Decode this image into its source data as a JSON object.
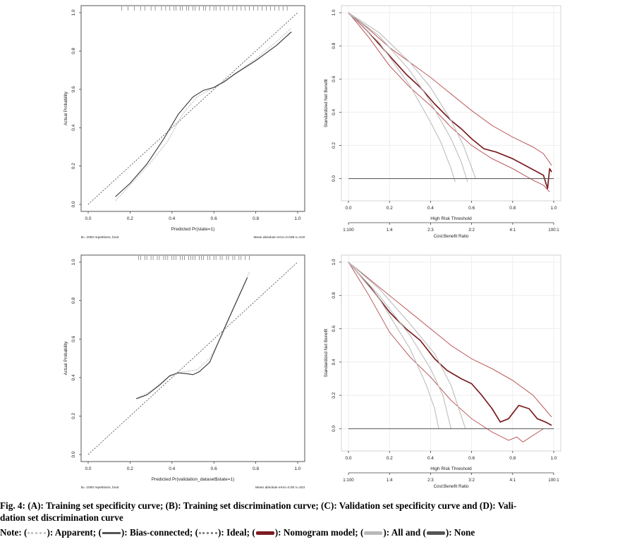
{
  "caption": {
    "line1": "Fig. 4: (A): Training set specificity curve; (B): Training set discrimination curve; (C): Validation set specificity curve and (D): Vali-",
    "line2": "dation set discrimination curve",
    "note": {
      "prefix": "Note: (",
      "apparent": "): Apparent; (",
      "bias": "): Bias-connected; (",
      "ideal": "): Ideal; (",
      "nomogram": "): Nomogram model; (",
      "all": "): All and (",
      "none": "): None"
    }
  },
  "colors": {
    "nomogram": "#7a1c20",
    "nomogram_ci": "#b5474a",
    "all": "#bdbdbd",
    "none": "#555555",
    "apparent": "#c8c8c8",
    "bias": "#333333",
    "ideal": "#555555",
    "grid": "#eeeeee",
    "axis": "#444444"
  },
  "chart_data": [
    {
      "id": "A",
      "type": "line",
      "title": "",
      "xlabel": "Predicted Pr(state=1)",
      "ylabel": "Actual Probability",
      "xlim": [
        0,
        1
      ],
      "ylim": [
        0,
        1
      ],
      "xticks": [
        "0.0",
        "0.2",
        "0.4",
        "0.6",
        "0.8",
        "1.0"
      ],
      "yticks": [
        "0.0",
        "0.2",
        "0.4",
        "0.6",
        "0.8",
        "1.0"
      ],
      "footnote_left": "B= 1000 repetitions, boot",
      "footnote_right": "Mean absolute error=0.038 n=419",
      "rug": [
        0.16,
        0.19,
        0.22,
        0.25,
        0.27,
        0.3,
        0.32,
        0.35,
        0.37,
        0.39,
        0.41,
        0.42,
        0.44,
        0.45,
        0.47,
        0.48,
        0.5,
        0.51,
        0.53,
        0.55,
        0.56,
        0.58,
        0.6,
        0.61,
        0.63,
        0.65,
        0.67,
        0.69,
        0.71,
        0.73,
        0.75,
        0.77,
        0.79,
        0.81,
        0.83,
        0.85,
        0.87,
        0.89,
        0.91,
        0.93,
        0.95
      ],
      "series": [
        {
          "name": "Ideal",
          "style": "ideal",
          "x": [
            0,
            1
          ],
          "y": [
            0,
            1
          ]
        },
        {
          "name": "Apparent",
          "style": "apparent",
          "x": [
            0.13,
            0.2,
            0.3,
            0.38,
            0.45,
            0.52,
            0.6,
            0.7,
            0.8,
            0.9,
            0.97
          ],
          "y": [
            0.02,
            0.1,
            0.22,
            0.33,
            0.47,
            0.56,
            0.61,
            0.68,
            0.76,
            0.85,
            0.92
          ]
        },
        {
          "name": "Bias-connected",
          "style": "bias",
          "x": [
            0.13,
            0.2,
            0.28,
            0.36,
            0.43,
            0.5,
            0.55,
            0.6,
            0.65,
            0.7,
            0.8,
            0.9,
            0.97
          ],
          "y": [
            0.04,
            0.11,
            0.21,
            0.34,
            0.47,
            0.56,
            0.595,
            0.61,
            0.64,
            0.68,
            0.75,
            0.83,
            0.9
          ]
        }
      ]
    },
    {
      "id": "B",
      "type": "line",
      "title": "",
      "xlabel": "High Risk Threshold",
      "ylabel": "Standardized Net Benefit",
      "xlim": [
        0,
        1
      ],
      "ylim": [
        -0.1,
        1
      ],
      "xticks": [
        "0.0",
        "0.2",
        "0.4",
        "0.6",
        "0.8",
        "1.0"
      ],
      "yticks": [
        "0.0",
        "0.2",
        "0.4",
        "0.6",
        "0.8",
        "1.0"
      ],
      "cost_benefit_label": "Cost:Benefit Ratio",
      "cost_benefit_ticks": [
        "1:100",
        "1:4",
        "2:3",
        "3:2",
        "4:1",
        "100:1"
      ],
      "series": [
        {
          "name": "Nomogram model",
          "style": "nomogram",
          "x": [
            0.0,
            0.1,
            0.2,
            0.28,
            0.35,
            0.42,
            0.5,
            0.55,
            0.6,
            0.66,
            0.72,
            0.8,
            0.86,
            0.92,
            0.95,
            0.97,
            0.98,
            0.99
          ],
          "y": [
            1.0,
            0.88,
            0.74,
            0.63,
            0.55,
            0.45,
            0.35,
            0.3,
            0.24,
            0.18,
            0.16,
            0.12,
            0.08,
            0.04,
            0.02,
            -0.06,
            0.06,
            0.04
          ]
        },
        {
          "name": "Nomogram upper CI",
          "style": "ci",
          "x": [
            0.0,
            0.1,
            0.2,
            0.3,
            0.4,
            0.5,
            0.6,
            0.7,
            0.8,
            0.9,
            0.95,
            0.99
          ],
          "y": [
            1.0,
            0.9,
            0.79,
            0.7,
            0.61,
            0.51,
            0.41,
            0.32,
            0.25,
            0.19,
            0.15,
            0.08
          ]
        },
        {
          "name": "Nomogram lower CI",
          "style": "ci",
          "x": [
            0.0,
            0.1,
            0.2,
            0.3,
            0.4,
            0.5,
            0.6,
            0.7,
            0.8,
            0.9,
            0.95,
            0.98
          ],
          "y": [
            1.0,
            0.85,
            0.68,
            0.55,
            0.44,
            0.31,
            0.2,
            0.12,
            0.06,
            -0.01,
            -0.04,
            -0.08
          ]
        },
        {
          "name": "All",
          "style": "all",
          "x": [
            0.0,
            0.15,
            0.3,
            0.4,
            0.45,
            0.5,
            0.52
          ],
          "y": [
            1.0,
            0.82,
            0.56,
            0.34,
            0.22,
            0.06,
            -0.02
          ]
        },
        {
          "name": "All CI 1",
          "style": "all",
          "x": [
            0.0,
            0.15,
            0.3,
            0.4,
            0.5,
            0.55,
            0.58
          ],
          "y": [
            1.0,
            0.86,
            0.65,
            0.46,
            0.24,
            0.1,
            -0.02
          ]
        },
        {
          "name": "All CI 2",
          "style": "all",
          "x": [
            0.0,
            0.15,
            0.3,
            0.4,
            0.5,
            0.56,
            0.62
          ],
          "y": [
            1.0,
            0.88,
            0.7,
            0.55,
            0.35,
            0.2,
            0.0
          ]
        },
        {
          "name": "None",
          "style": "none",
          "x": [
            0.0,
            1.0
          ],
          "y": [
            0.0,
            0.0
          ]
        }
      ]
    },
    {
      "id": "C",
      "type": "line",
      "title": "",
      "xlabel": "Predicted Pr(validation_dataset$state=1)",
      "ylabel": "Actual Probability",
      "xlim": [
        0,
        1
      ],
      "ylim": [
        0,
        1
      ],
      "xticks": [
        "0.0",
        "0.2",
        "0.4",
        "0.6",
        "0.8",
        "1.0"
      ],
      "yticks": [
        "0.0",
        "0.2",
        "0.4",
        "0.6",
        "0.8",
        "1.0"
      ],
      "footnote_left": "B= 1000 repetitions, boot",
      "footnote_right": "Mean absolute error=0.00 n=103",
      "rug": [
        0.24,
        0.25,
        0.27,
        0.28,
        0.3,
        0.31,
        0.33,
        0.34,
        0.36,
        0.37,
        0.38,
        0.4,
        0.41,
        0.42,
        0.44,
        0.45,
        0.46,
        0.48,
        0.49,
        0.5,
        0.51,
        0.53,
        0.54,
        0.55,
        0.57,
        0.58,
        0.6,
        0.61,
        0.63,
        0.64,
        0.66,
        0.67,
        0.69,
        0.7,
        0.72,
        0.73,
        0.75,
        0.77
      ],
      "series": [
        {
          "name": "Ideal",
          "style": "ideal",
          "x": [
            0,
            1
          ],
          "y": [
            0,
            1
          ]
        },
        {
          "name": "Apparent",
          "style": "apparent",
          "x": [
            0.23,
            0.3,
            0.38,
            0.45,
            0.52,
            0.58,
            0.64,
            0.7,
            0.77
          ],
          "y": [
            0.29,
            0.33,
            0.4,
            0.43,
            0.44,
            0.5,
            0.62,
            0.78,
            0.95
          ]
        },
        {
          "name": "Bias-connected",
          "style": "bias",
          "x": [
            0.23,
            0.28,
            0.34,
            0.39,
            0.43,
            0.47,
            0.5,
            0.53,
            0.58,
            0.62,
            0.66,
            0.71,
            0.76
          ],
          "y": [
            0.29,
            0.31,
            0.36,
            0.41,
            0.425,
            0.42,
            0.415,
            0.43,
            0.48,
            0.58,
            0.68,
            0.8,
            0.92
          ]
        }
      ]
    },
    {
      "id": "D",
      "type": "line",
      "title": "",
      "xlabel": "High Risk Threshold",
      "ylabel": "Standardized Net Benefit",
      "xlim": [
        0,
        1
      ],
      "ylim": [
        -0.1,
        1
      ],
      "xticks": [
        "0.0",
        "0.2",
        "0.4",
        "0.6",
        "0.8",
        "1.0"
      ],
      "yticks": [
        "0.0",
        "0.2",
        "0.4",
        "0.6",
        "0.8",
        "1.0"
      ],
      "cost_benefit_label": "Cost:Benefit Ratio",
      "cost_benefit_ticks": [
        "1:100",
        "1:4",
        "2:3",
        "3:2",
        "4:1",
        "100:1"
      ],
      "series": [
        {
          "name": "Nomogram model",
          "style": "nomogram",
          "x": [
            0.0,
            0.1,
            0.2,
            0.28,
            0.35,
            0.42,
            0.48,
            0.55,
            0.6,
            0.65,
            0.7,
            0.74,
            0.78,
            0.83,
            0.88,
            0.92,
            0.96,
            0.99
          ],
          "y": [
            1.0,
            0.86,
            0.7,
            0.6,
            0.53,
            0.42,
            0.35,
            0.3,
            0.27,
            0.2,
            0.12,
            0.04,
            0.06,
            0.14,
            0.12,
            0.06,
            0.04,
            0.02
          ]
        },
        {
          "name": "Nomogram upper CI",
          "style": "ci",
          "x": [
            0.0,
            0.1,
            0.2,
            0.3,
            0.4,
            0.5,
            0.6,
            0.7,
            0.8,
            0.9,
            0.99
          ],
          "y": [
            1.0,
            0.9,
            0.8,
            0.7,
            0.6,
            0.5,
            0.42,
            0.36,
            0.29,
            0.2,
            0.07
          ]
        },
        {
          "name": "Nomogram lower CI",
          "style": "ci",
          "x": [
            0.0,
            0.1,
            0.2,
            0.3,
            0.4,
            0.5,
            0.6,
            0.7,
            0.78,
            0.82,
            0.85,
            0.9,
            0.95
          ],
          "y": [
            1.0,
            0.8,
            0.58,
            0.43,
            0.31,
            0.17,
            0.06,
            -0.02,
            -0.07,
            -0.05,
            -0.08,
            -0.04,
            0.0
          ]
        },
        {
          "name": "All",
          "style": "all",
          "x": [
            0.0,
            0.15,
            0.3,
            0.38,
            0.42,
            0.44
          ],
          "y": [
            1.0,
            0.78,
            0.48,
            0.26,
            0.12,
            0.0
          ]
        },
        {
          "name": "All CI 1",
          "style": "all",
          "x": [
            0.0,
            0.15,
            0.3,
            0.4,
            0.46,
            0.5
          ],
          "y": [
            1.0,
            0.8,
            0.56,
            0.36,
            0.2,
            0.0
          ]
        },
        {
          "name": "All CI 2",
          "style": "all",
          "x": [
            0.0,
            0.15,
            0.3,
            0.42,
            0.5,
            0.57
          ],
          "y": [
            1.0,
            0.84,
            0.63,
            0.45,
            0.26,
            0.0
          ]
        },
        {
          "name": "None",
          "style": "none",
          "x": [
            0.0,
            1.0
          ],
          "y": [
            0.0,
            0.0
          ]
        }
      ]
    }
  ]
}
